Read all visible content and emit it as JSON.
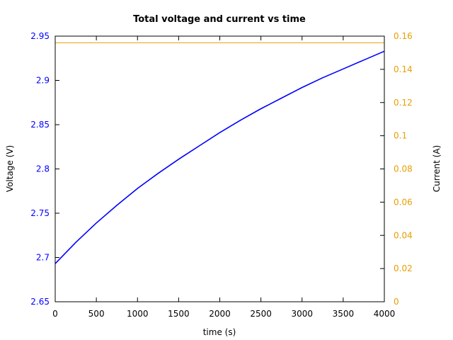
{
  "chart_data": {
    "type": "line",
    "title": "Total voltage and current vs time",
    "xlabel": "time (s)",
    "ylabel": "Voltage (V)",
    "y2label": "Current (A)",
    "xlim": [
      0,
      4000
    ],
    "ylim": [
      2.65,
      2.95
    ],
    "y2lim": [
      0,
      0.16
    ],
    "grid": false,
    "legend": null,
    "x_ticks": [
      "0",
      "500",
      "1000",
      "1500",
      "2000",
      "2500",
      "3000",
      "3500",
      "4000"
    ],
    "y_ticks": [
      "2.65",
      "2.7",
      "2.75",
      "2.8",
      "2.85",
      "2.9",
      "2.95"
    ],
    "y2_ticks": [
      "0",
      "0.02",
      "0.04",
      "0.06",
      "0.08",
      "0.1",
      "0.12",
      "0.14",
      "0.16"
    ],
    "series": [
      {
        "name": "Voltage",
        "axis": "left",
        "color": "#0000ff",
        "x": [
          0,
          250,
          500,
          750,
          1000,
          1250,
          1500,
          1750,
          2000,
          2250,
          2500,
          2750,
          3000,
          3250,
          3500,
          3750,
          4000
        ],
        "values": [
          2.693,
          2.717,
          2.739,
          2.759,
          2.778,
          2.795,
          2.811,
          2.826,
          2.841,
          2.855,
          2.868,
          2.88,
          2.892,
          2.903,
          2.913,
          2.923,
          2.933
        ]
      },
      {
        "name": "Current",
        "axis": "right",
        "color": "#e69f00",
        "x": [
          0,
          4000
        ],
        "values": [
          0.156,
          0.156
        ]
      }
    ]
  }
}
